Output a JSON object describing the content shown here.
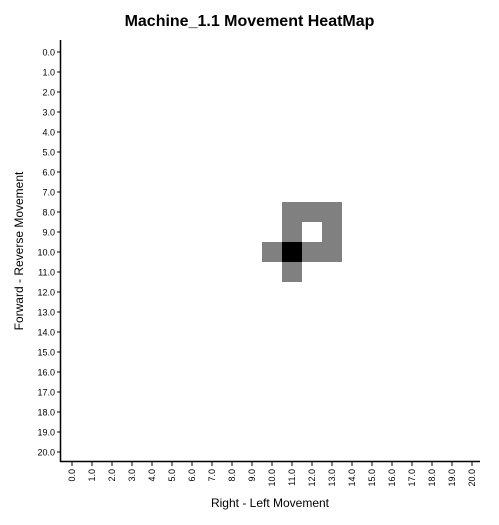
{
  "chart_data": {
    "type": "heatmap",
    "title": "Machine_1.1 Movement HeatMap",
    "xlabel": "Right - Left Movement",
    "ylabel": "Forward - Reverse Movement",
    "x_ticks": [
      "0.0",
      "1.0",
      "2.0",
      "3.0",
      "4.0",
      "5.0",
      "6.0",
      "7.0",
      "8.0",
      "9.0",
      "10.0",
      "11.0",
      "12.0",
      "13.0",
      "14.0",
      "15.0",
      "16.0",
      "17.0",
      "18.0",
      "19.0",
      "20.0"
    ],
    "y_ticks": [
      "0.0",
      "1.0",
      "2.0",
      "3.0",
      "4.0",
      "5.0",
      "6.0",
      "7.0",
      "8.0",
      "9.0",
      "10.0",
      "11.0",
      "12.0",
      "13.0",
      "14.0",
      "15.0",
      "16.0",
      "17.0",
      "18.0",
      "19.0",
      "20.0"
    ],
    "xlim": [
      0,
      20
    ],
    "ylim": [
      0,
      20
    ],
    "grid": false,
    "colors": {
      "low": "#808080",
      "high": "#000000"
    },
    "cells": [
      {
        "x": 11,
        "y": 8,
        "value": 1
      },
      {
        "x": 12,
        "y": 8,
        "value": 1
      },
      {
        "x": 13,
        "y": 8,
        "value": 1
      },
      {
        "x": 11,
        "y": 9,
        "value": 1
      },
      {
        "x": 13,
        "y": 9,
        "value": 1
      },
      {
        "x": 10,
        "y": 10,
        "value": 1
      },
      {
        "x": 11,
        "y": 10,
        "value": 2
      },
      {
        "x": 12,
        "y": 10,
        "value": 1
      },
      {
        "x": 13,
        "y": 10,
        "value": 1
      },
      {
        "x": 11,
        "y": 11,
        "value": 1
      }
    ]
  }
}
